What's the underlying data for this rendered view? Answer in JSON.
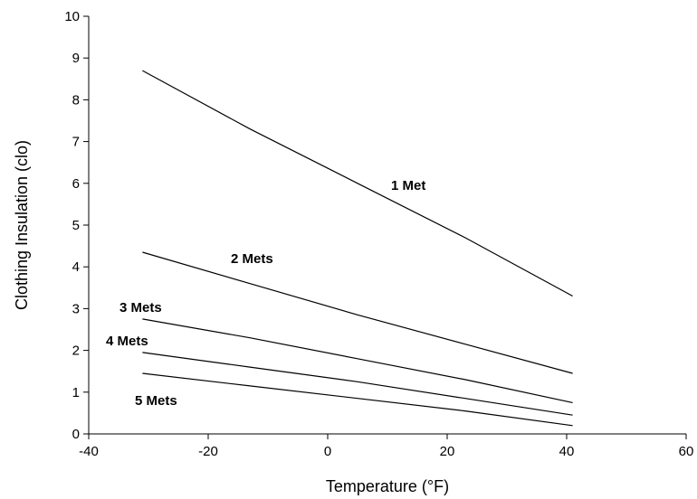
{
  "chart_data": {
    "type": "line",
    "title": "",
    "xlabel": "Temperature (°F)",
    "ylabel": "Clothing Insulation (clo)",
    "xlim": [
      -40,
      60
    ],
    "ylim": [
      0,
      10
    ],
    "xticks": [
      "-40",
      "-20",
      "0",
      "20",
      "40",
      "60"
    ],
    "yticks": [
      "0",
      "1",
      "2",
      "3",
      "4",
      "5",
      "6",
      "7",
      "8",
      "9",
      "10"
    ],
    "grid": false,
    "legend": "none",
    "line_color": "#000000",
    "series": [
      {
        "name": "1 Met",
        "x": [
          -31,
          -13,
          5,
          23,
          41
        ],
        "y": [
          8.7,
          7.3,
          6.0,
          4.7,
          3.3
        ]
      },
      {
        "name": "2 Mets",
        "x": [
          -31,
          -13,
          5,
          23,
          41
        ],
        "y": [
          4.35,
          3.6,
          2.85,
          2.15,
          1.45
        ]
      },
      {
        "name": "3 Mets",
        "x": [
          -31,
          -13,
          5,
          23,
          41
        ],
        "y": [
          2.75,
          2.3,
          1.8,
          1.3,
          0.75
        ]
      },
      {
        "name": "4 Mets",
        "x": [
          -31,
          -13,
          5,
          23,
          41
        ],
        "y": [
          1.95,
          1.6,
          1.25,
          0.85,
          0.45
        ]
      },
      {
        "name": "5 Mets",
        "x": [
          -31,
          -13,
          5,
          23,
          41
        ],
        "y": [
          1.45,
          1.15,
          0.85,
          0.55,
          0.2
        ]
      }
    ]
  }
}
